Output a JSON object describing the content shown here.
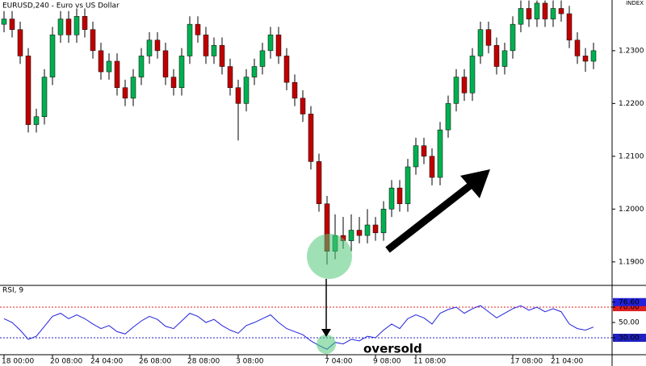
{
  "chart_data": {
    "type": "candlestick",
    "title": "EURUSD,240 - Euro vs US Dollar",
    "corner_label": "INDEX",
    "up_color": "#00b050",
    "down_color": "#c00000",
    "ylim": [
      1.1857,
      1.2396
    ],
    "yticks": [
      {
        "value": 1.19,
        "label": "1.1900"
      },
      {
        "value": 1.2,
        "label": "1.2000"
      },
      {
        "value": 1.21,
        "label": "1.2100"
      },
      {
        "value": 1.22,
        "label": "1.2200"
      },
      {
        "value": 1.23,
        "label": "1.2300"
      }
    ],
    "categories": [
      "18 00:00",
      null,
      null,
      null,
      null,
      null,
      "20 08:00",
      null,
      null,
      null,
      null,
      "24 04:00",
      null,
      null,
      null,
      null,
      null,
      "26 08:00",
      null,
      null,
      null,
      null,
      null,
      "28 08:00",
      null,
      null,
      null,
      null,
      null,
      "3 08:00",
      null,
      null,
      null,
      null,
      null,
      null,
      null,
      null,
      null,
      null,
      "7 04:00",
      null,
      null,
      null,
      null,
      null,
      "9 08:00",
      null,
      null,
      null,
      null,
      "11 08:00",
      null,
      null,
      null,
      null,
      null,
      null,
      null,
      null,
      null,
      null,
      null,
      "17 08:00",
      null,
      null,
      null,
      null,
      "21 04:00",
      null,
      null,
      null,
      null,
      null
    ],
    "open": [
      1.235,
      1.236,
      1.234,
      1.229,
      1.216,
      1.2175,
      1.225,
      1.233,
      1.236,
      1.233,
      1.2365,
      1.234,
      1.23,
      1.226,
      1.228,
      1.223,
      1.221,
      1.225,
      1.229,
      1.232,
      1.23,
      1.225,
      1.223,
      1.229,
      1.235,
      1.233,
      1.229,
      1.231,
      1.227,
      1.223,
      1.22,
      1.225,
      1.227,
      1.23,
      1.233,
      1.229,
      1.224,
      1.221,
      1.218,
      1.209,
      1.201,
      1.192,
      1.195,
      1.194,
      1.196,
      1.195,
      1.197,
      1.1955,
      1.2,
      1.204,
      1.201,
      1.208,
      1.212,
      1.21,
      1.206,
      1.215,
      1.22,
      1.225,
      1.222,
      1.229,
      1.234,
      1.231,
      1.227,
      1.23,
      1.235,
      1.238,
      1.236,
      1.239,
      1.236,
      1.238,
      1.237,
      1.232,
      1.229,
      1.228
    ],
    "high": [
      1.2375,
      1.2375,
      1.2355,
      1.2305,
      1.219,
      1.2265,
      1.2345,
      1.2375,
      1.2375,
      1.238,
      1.238,
      1.2355,
      1.2315,
      1.2295,
      1.2295,
      1.2245,
      1.2265,
      1.2305,
      1.2335,
      1.2335,
      1.2315,
      1.2265,
      1.2305,
      1.2365,
      1.2365,
      1.2345,
      1.2325,
      1.2325,
      1.2285,
      1.2245,
      1.2265,
      1.2285,
      1.2315,
      1.2345,
      1.2345,
      1.2305,
      1.2255,
      1.2225,
      1.2195,
      1.2105,
      1.2025,
      1.199,
      1.1985,
      1.199,
      1.1985,
      1.2,
      1.1985,
      1.2015,
      1.2055,
      1.2055,
      1.2095,
      1.2135,
      1.2135,
      1.2115,
      1.2165,
      1.2215,
      1.2265,
      1.2265,
      1.2305,
      1.2355,
      1.2355,
      1.2325,
      1.2315,
      1.2365,
      1.2395,
      1.2395,
      1.2395,
      1.2395,
      1.2395,
      1.2395,
      1.2385,
      1.2335,
      1.2305,
      1.2315
    ],
    "low": [
      1.2335,
      1.2325,
      1.2275,
      1.2145,
      1.2145,
      1.216,
      1.2235,
      1.2315,
      1.2315,
      1.2315,
      1.2325,
      1.2285,
      1.2245,
      1.2245,
      1.2215,
      1.2195,
      1.2195,
      1.2235,
      1.2275,
      1.2285,
      1.2235,
      1.2215,
      1.2215,
      1.2275,
      1.2315,
      1.2275,
      1.2275,
      1.2255,
      1.2215,
      1.213,
      1.2185,
      1.2235,
      1.2255,
      1.2285,
      1.2275,
      1.2225,
      1.2195,
      1.2165,
      1.2075,
      1.1995,
      1.1895,
      1.1905,
      1.1925,
      1.192,
      1.1935,
      1.1935,
      1.194,
      1.194,
      1.1985,
      1.1995,
      1.1995,
      1.2065,
      1.2085,
      1.2045,
      1.2045,
      1.2135,
      1.2185,
      1.2205,
      1.2205,
      1.2275,
      1.2295,
      1.2255,
      1.2255,
      1.2285,
      1.2335,
      1.2345,
      1.2345,
      1.2345,
      1.2345,
      1.2355,
      1.2305,
      1.2275,
      1.226,
      1.2265
    ],
    "close": [
      1.236,
      1.234,
      1.229,
      1.216,
      1.2175,
      1.225,
      1.233,
      1.236,
      1.233,
      1.2365,
      1.234,
      1.23,
      1.226,
      1.228,
      1.223,
      1.221,
      1.225,
      1.229,
      1.232,
      1.23,
      1.225,
      1.223,
      1.229,
      1.235,
      1.233,
      1.229,
      1.231,
      1.227,
      1.223,
      1.22,
      1.225,
      1.227,
      1.23,
      1.233,
      1.229,
      1.224,
      1.221,
      1.218,
      1.209,
      1.201,
      1.192,
      1.195,
      1.194,
      1.196,
      1.195,
      1.197,
      1.1955,
      1.2,
      1.204,
      1.201,
      1.208,
      1.212,
      1.21,
      1.206,
      1.215,
      1.22,
      1.225,
      1.222,
      1.229,
      1.234,
      1.231,
      1.227,
      1.23,
      1.235,
      1.238,
      1.236,
      1.239,
      1.236,
      1.238,
      1.237,
      1.232,
      1.229,
      1.228,
      1.23
    ],
    "rsi": {
      "title": "RSI, 9",
      "color": "#2222dd",
      "ylim": [
        7.9,
        97.4
      ],
      "yticks": [
        {
          "value": 30,
          "label": "30.00"
        },
        {
          "value": 50,
          "label": "50.00"
        },
        {
          "value": 70,
          "label": "70.00"
        },
        {
          "value": 76.6,
          "label": "76.60"
        }
      ],
      "levels": [
        {
          "value": 70,
          "color": "#e02020"
        },
        {
          "value": 30,
          "color": "#2020c0"
        }
      ],
      "values": [
        55,
        50,
        40,
        28,
        32,
        45,
        58,
        62,
        55,
        60,
        55,
        48,
        42,
        46,
        38,
        35,
        44,
        52,
        58,
        54,
        45,
        42,
        52,
        62,
        58,
        50,
        54,
        46,
        40,
        36,
        46,
        50,
        55,
        60,
        50,
        42,
        38,
        34,
        26,
        20,
        15,
        24,
        22,
        28,
        26,
        32,
        30,
        40,
        48,
        42,
        55,
        60,
        56,
        48,
        62,
        67,
        70,
        62,
        68,
        72,
        64,
        56,
        62,
        68,
        72,
        66,
        70,
        64,
        68,
        64,
        48,
        42,
        40,
        44
      ]
    },
    "annotation": "oversold"
  }
}
